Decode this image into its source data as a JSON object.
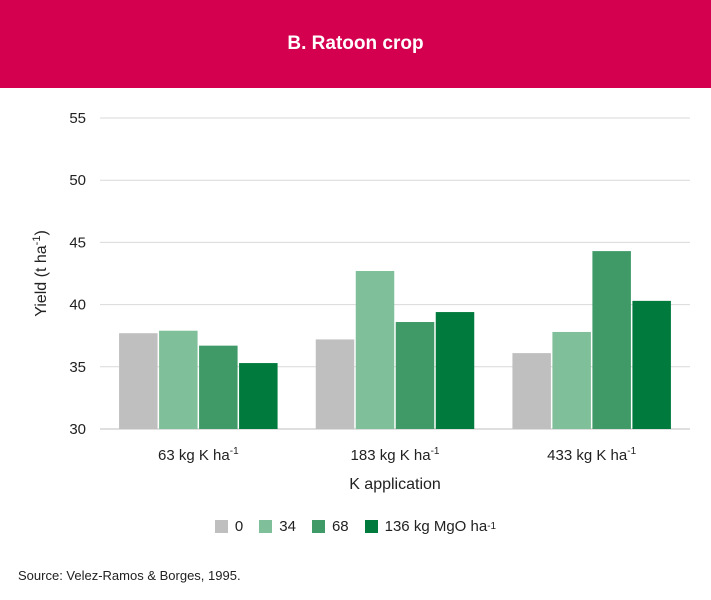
{
  "panel_title": "B. Ratoon crop",
  "source": "Source: Velez-Ramos & Borges, 1995.",
  "colors": {
    "header_bg": "#d4004f",
    "s0": "#bfbfbf",
    "s34": "#7fbf99",
    "s68": "#3f9a67",
    "s136": "#007a3d",
    "grid": "#d9d9d9"
  },
  "chart_data": {
    "type": "bar",
    "title": "",
    "xlabel": "K application",
    "ylabel": "Yield (t ha",
    "ylabel_sup": "-1",
    "ylabel_close": ")",
    "ylim": [
      30,
      55
    ],
    "yticks": [
      30,
      35,
      40,
      45,
      50,
      55
    ],
    "grid": true,
    "legend_position": "bottom",
    "categories": [
      {
        "label": "63 kg K ha",
        "sup": "-1"
      },
      {
        "label": "183 kg K ha",
        "sup": "-1"
      },
      {
        "label": "433 kg K ha",
        "sup": "-1"
      }
    ],
    "series": [
      {
        "name": "0",
        "name_sup": "",
        "color": "#bfbfbf",
        "values": [
          37.7,
          37.2,
          36.1
        ]
      },
      {
        "name": "34",
        "name_sup": "",
        "color": "#7fbf99",
        "values": [
          37.9,
          42.7,
          37.8
        ]
      },
      {
        "name": "68",
        "name_sup": "",
        "color": "#3f9a67",
        "values": [
          36.7,
          38.6,
          44.3
        ]
      },
      {
        "name": "136 kg MgO ha",
        "name_sup": "-1",
        "color": "#007a3d",
        "values": [
          35.3,
          39.4,
          40.3
        ]
      }
    ]
  }
}
